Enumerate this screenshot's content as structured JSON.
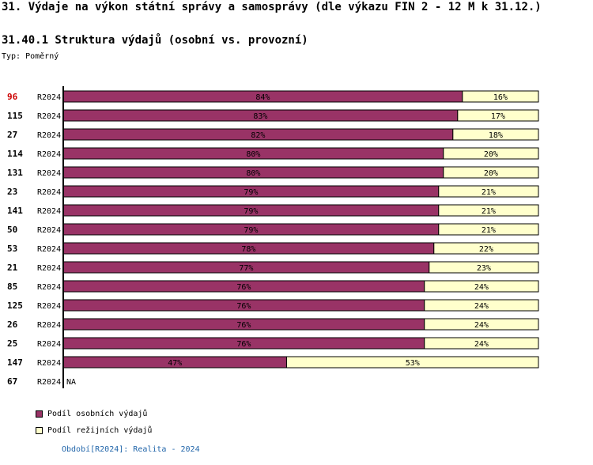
{
  "page": {
    "title": "31. Výdaje na výkon státní správy a samosprávy (dle výkazu FIN 2 - 12 M k 31.12.)",
    "subtitle": "31.40.1 Struktura výdajů (osobní vs. provozní)",
    "type_label": "Typ: Poměrný",
    "footer": "Období[R2024]: Realita - 2024"
  },
  "colors": {
    "personnel": "#993366",
    "operating": "#ffffcc",
    "highlight_id": "#cc0000"
  },
  "chart_data": {
    "type": "bar",
    "orientation": "horizontal",
    "stacked": true,
    "normalized": true,
    "xlim": [
      0,
      100
    ],
    "categories": [
      {
        "id": "96",
        "period": "R2024",
        "highlight": true
      },
      {
        "id": "115",
        "period": "R2024"
      },
      {
        "id": "27",
        "period": "R2024"
      },
      {
        "id": "114",
        "period": "R2024"
      },
      {
        "id": "131",
        "period": "R2024"
      },
      {
        "id": "23",
        "period": "R2024"
      },
      {
        "id": "141",
        "period": "R2024"
      },
      {
        "id": "50",
        "period": "R2024"
      },
      {
        "id": "53",
        "period": "R2024"
      },
      {
        "id": "21",
        "period": "R2024"
      },
      {
        "id": "85",
        "period": "R2024"
      },
      {
        "id": "125",
        "period": "R2024"
      },
      {
        "id": "26",
        "period": "R2024"
      },
      {
        "id": "25",
        "period": "R2024"
      },
      {
        "id": "147",
        "period": "R2024"
      },
      {
        "id": "67",
        "period": "R2024",
        "na": "NA"
      }
    ],
    "series": [
      {
        "name": "Podíl osobních výdajů",
        "color": "#993366",
        "values": [
          84,
          83,
          82,
          80,
          80,
          79,
          79,
          79,
          78,
          77,
          76,
          76,
          76,
          76,
          47,
          null
        ],
        "labels": [
          "84%",
          "83%",
          "82%",
          "80%",
          "80%",
          "79%",
          "79%",
          "79%",
          "78%",
          "77%",
          "76%",
          "76%",
          "76%",
          "76%",
          "47%",
          null
        ]
      },
      {
        "name": "Podíl režijních výdajů",
        "color": "#ffffcc",
        "values": [
          16,
          17,
          18,
          20,
          20,
          21,
          21,
          21,
          22,
          23,
          24,
          24,
          24,
          24,
          53,
          null
        ],
        "labels": [
          "16%",
          "17%",
          "18%",
          "20%",
          "20%",
          "21%",
          "21%",
          "21%",
          "22%",
          "23%",
          "24%",
          "24%",
          "24%",
          "24%",
          "53%",
          null
        ]
      }
    ]
  }
}
